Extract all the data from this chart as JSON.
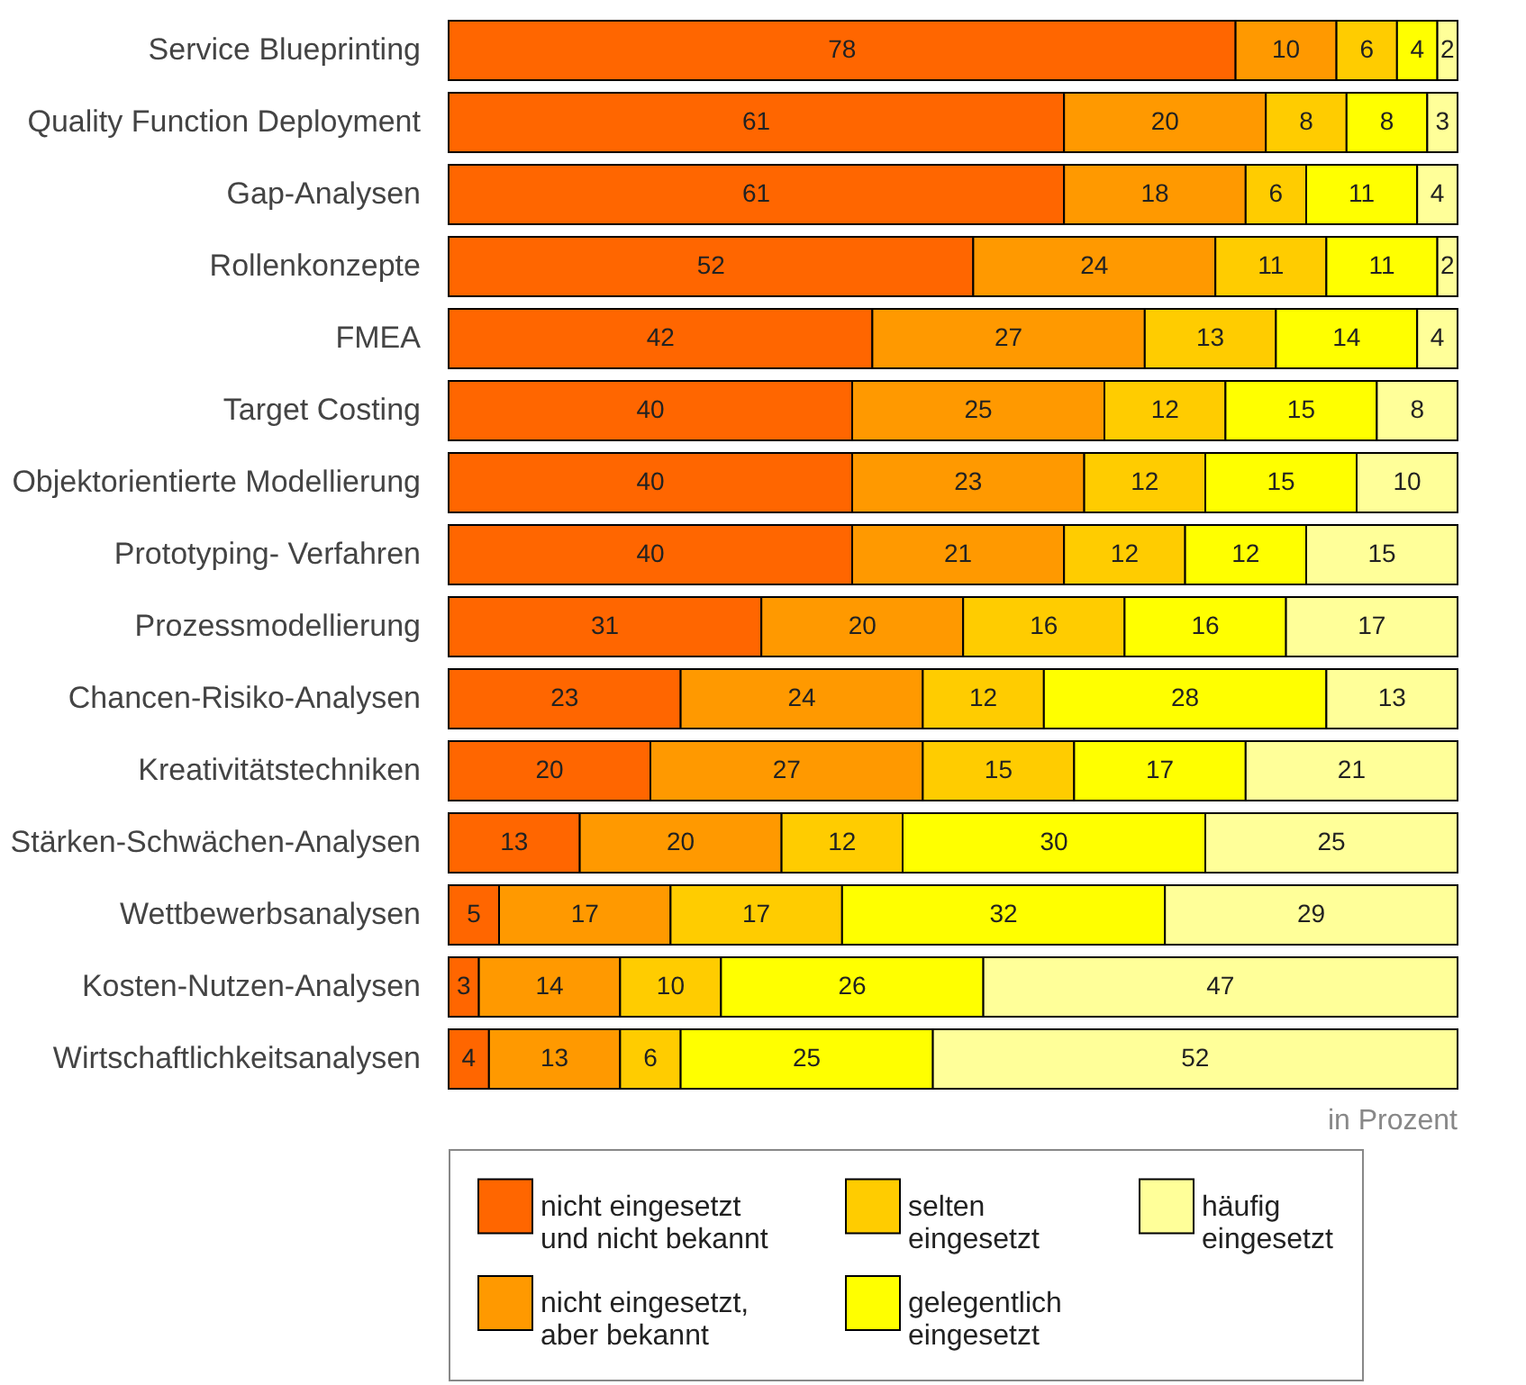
{
  "chart_data": {
    "type": "bar",
    "orientation": "horizontal",
    "stacked": true,
    "categories": [
      "Service Blueprinting",
      "Quality Function Deployment",
      "Gap-Analysen",
      "Rollenkonzepte",
      "FMEA",
      "Target Costing",
      "Objektorientierte Modellierung",
      "Prototyping- Verfahren",
      "Prozessmodellierung",
      "Chancen-Risiko-Analysen",
      "Kreativitätstechniken",
      "Stärken-Schwächen-Analysen",
      "Wettbewerbsanalysen",
      "Kosten-Nutzen-Analysen",
      "Wirtschaftlichkeitsanalysen"
    ],
    "series": [
      {
        "name": "nicht eingesetzt\nund nicht bekannt",
        "color": "#ff6600",
        "values": [
          78,
          61,
          61,
          52,
          42,
          40,
          40,
          40,
          31,
          23,
          20,
          13,
          5,
          3,
          4
        ]
      },
      {
        "name": "nicht eingesetzt,\naber bekannt",
        "color": "#ff9900",
        "values": [
          10,
          20,
          18,
          24,
          27,
          25,
          23,
          21,
          20,
          24,
          27,
          20,
          17,
          14,
          13
        ]
      },
      {
        "name": "selten\neingesetzt",
        "color": "#ffcc00",
        "values": [
          6,
          8,
          6,
          11,
          13,
          12,
          12,
          12,
          16,
          12,
          15,
          12,
          17,
          10,
          6
        ]
      },
      {
        "name": "gelegentlich\neingesetzt",
        "color": "#ffff00",
        "values": [
          4,
          8,
          11,
          11,
          14,
          15,
          15,
          12,
          16,
          28,
          17,
          30,
          32,
          26,
          25
        ]
      },
      {
        "name": "häufig\neingesetzt",
        "color": "#ffff99",
        "values": [
          2,
          3,
          4,
          2,
          4,
          8,
          10,
          15,
          17,
          13,
          21,
          25,
          29,
          47,
          52
        ]
      }
    ],
    "xlim": [
      0,
      100
    ],
    "tick_labels": "y",
    "data_labels": true,
    "legend": "bottom",
    "annotations": [
      "in Prozent"
    ]
  }
}
